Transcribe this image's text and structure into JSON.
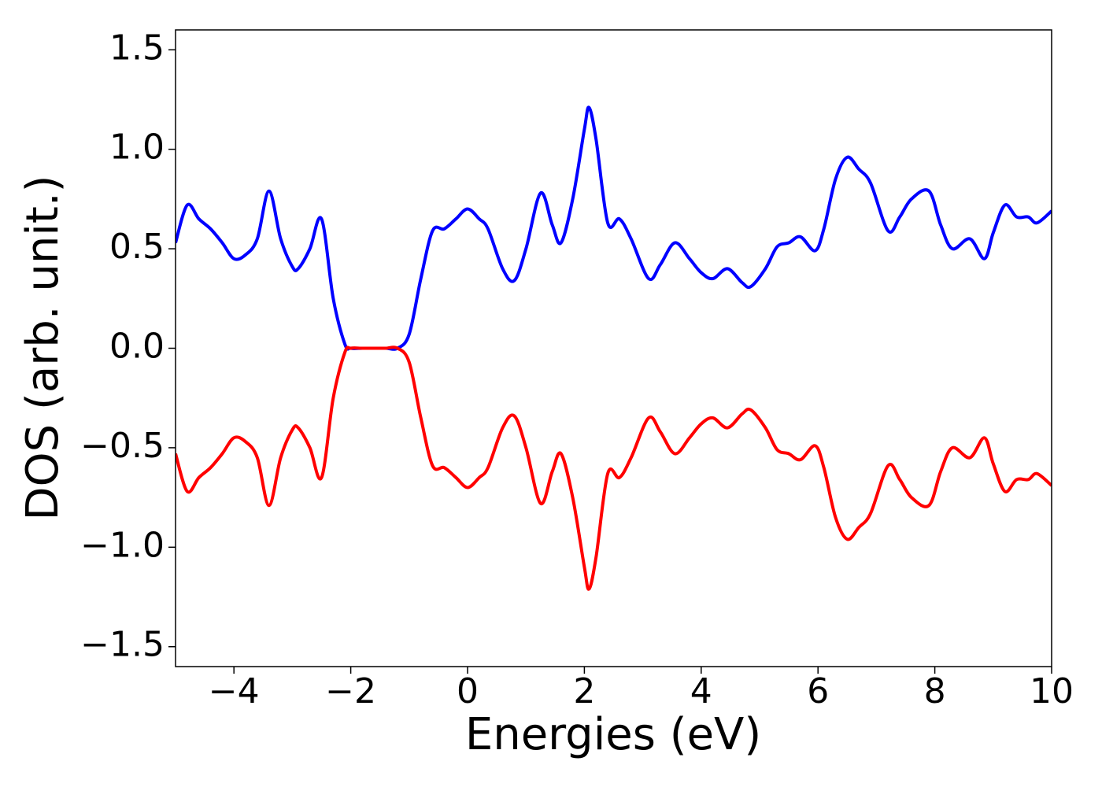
{
  "chart_data": {
    "type": "line",
    "x_label": "Energies (eV)",
    "y_label": "DOS (arb. unit.)",
    "x": [
      -5,
      -4.8,
      -4.6,
      -4.4,
      -4.2,
      -4.0,
      -3.8,
      -3.6,
      -3.4,
      -3.2,
      -3.0,
      -2.9,
      -2.7,
      -2.5,
      -2.3,
      -2.1,
      -2.0,
      -1.8,
      -1.6,
      -1.4,
      -1.2,
      -1.0,
      -0.8,
      -0.6,
      -0.4,
      -0.2,
      0.0,
      0.2,
      0.35,
      0.6,
      0.8,
      1.0,
      1.25,
      1.45,
      1.6,
      1.8,
      2.0,
      2.08,
      2.2,
      2.4,
      2.6,
      2.8,
      3.1,
      3.3,
      3.55,
      3.8,
      4.0,
      4.2,
      4.45,
      4.7,
      4.85,
      5.1,
      5.3,
      5.5,
      5.7,
      5.95,
      6.1,
      6.3,
      6.5,
      6.7,
      6.9,
      7.2,
      7.4,
      7.6,
      7.9,
      8.1,
      8.3,
      8.6,
      8.85,
      9.0,
      9.2,
      9.4,
      9.6,
      9.75,
      10
    ],
    "series": [
      {
        "color": "#0000ff",
        "values": [
          0.53,
          0.72,
          0.65,
          0.6,
          0.53,
          0.45,
          0.47,
          0.55,
          0.79,
          0.55,
          0.41,
          0.4,
          0.5,
          0.65,
          0.25,
          0.02,
          0,
          0,
          0,
          0,
          0,
          0.07,
          0.35,
          0.59,
          0.6,
          0.65,
          0.7,
          0.65,
          0.6,
          0.4,
          0.34,
          0.5,
          0.78,
          0.62,
          0.53,
          0.75,
          1.1,
          1.21,
          1.05,
          0.63,
          0.65,
          0.55,
          0.35,
          0.42,
          0.53,
          0.45,
          0.38,
          0.35,
          0.4,
          0.33,
          0.31,
          0.4,
          0.51,
          0.53,
          0.56,
          0.49,
          0.6,
          0.85,
          0.96,
          0.9,
          0.83,
          0.59,
          0.66,
          0.75,
          0.79,
          0.62,
          0.5,
          0.55,
          0.45,
          0.58,
          0.72,
          0.66,
          0.66,
          0.63,
          0.69
        ]
      },
      {
        "color": "#ff0000",
        "values": [
          -0.53,
          -0.72,
          -0.65,
          -0.6,
          -0.53,
          -0.45,
          -0.47,
          -0.55,
          -0.79,
          -0.55,
          -0.41,
          -0.4,
          -0.5,
          -0.65,
          -0.25,
          -0.02,
          0,
          0,
          0,
          0,
          0,
          -0.07,
          -0.35,
          -0.59,
          -0.6,
          -0.65,
          -0.7,
          -0.65,
          -0.6,
          -0.4,
          -0.34,
          -0.5,
          -0.78,
          -0.62,
          -0.53,
          -0.75,
          -1.1,
          -1.21,
          -1.05,
          -0.63,
          -0.65,
          -0.55,
          -0.35,
          -0.42,
          -0.53,
          -0.45,
          -0.38,
          -0.35,
          -0.4,
          -0.33,
          -0.31,
          -0.4,
          -0.51,
          -0.53,
          -0.56,
          -0.49,
          -0.6,
          -0.85,
          -0.96,
          -0.9,
          -0.83,
          -0.59,
          -0.66,
          -0.75,
          -0.79,
          -0.62,
          -0.5,
          -0.55,
          -0.45,
          -0.58,
          -0.72,
          -0.66,
          -0.66,
          -0.63,
          -0.69
        ]
      }
    ],
    "xlim": [
      -5,
      10
    ],
    "ylim": [
      -1.6,
      1.6
    ],
    "xticks": [
      {
        "value": -4,
        "label": "−4"
      },
      {
        "value": -2,
        "label": "−2"
      },
      0,
      2,
      4,
      6,
      8,
      10
    ],
    "yticks": [
      {
        "value": -1.5,
        "label": "−1.5"
      },
      {
        "value": -1.0,
        "label": "−1.0"
      },
      {
        "value": -0.5,
        "label": "−0.5"
      },
      {
        "value": 0,
        "label": "0.0"
      },
      0.5,
      {
        "value": 1.0,
        "label": "1.0"
      },
      1.5
    ],
    "grid": false
  }
}
